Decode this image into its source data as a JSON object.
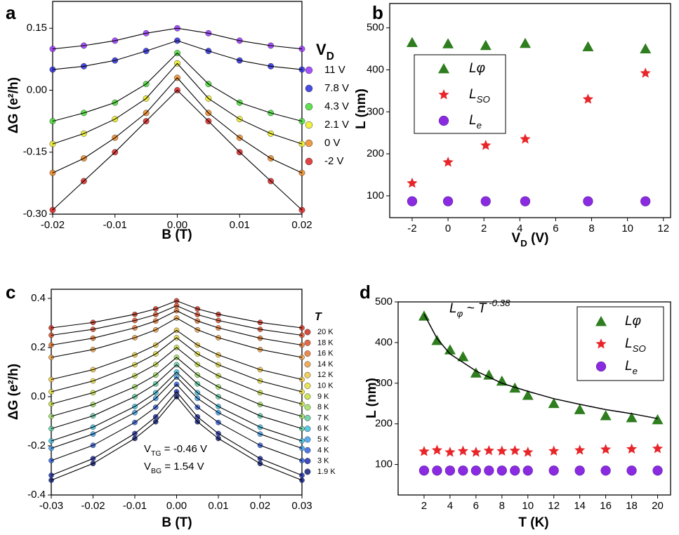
{
  "chart_data": [
    {
      "type": "line",
      "panel_label": "a",
      "x_label": "B (T)",
      "y_label": "ΔG (e²/h)",
      "legend_title": {
        "main": "V",
        "sub": "D"
      },
      "x": [
        -0.02,
        -0.015,
        -0.01,
        -0.005,
        0,
        0.005,
        0.01,
        0.015,
        0.02
      ],
      "xlim": [
        -0.02,
        0.02
      ],
      "ylim": [
        -0.3,
        0.215
      ],
      "xticks": [
        -0.02,
        -0.01,
        {
          "value": 0,
          "label": "0.00"
        },
        0.01,
        0.02
      ],
      "yticks": [
        {
          "value": 0.15,
          "label": "0.15"
        },
        {
          "value": 0,
          "label": "0.00"
        },
        {
          "value": -0.15,
          "label": "-0.15"
        },
        {
          "value": -0.3,
          "label": "-0.30"
        }
      ],
      "fit_color": "#000000",
      "series": [
        {
          "name": "11 V",
          "color": "#9933ff",
          "marker": "circle",
          "values": [
            0.1,
            0.108,
            0.12,
            0.138,
            0.15,
            0.138,
            0.12,
            0.108,
            0.1
          ]
        },
        {
          "name": "7.8 V",
          "color": "#2a2ae0",
          "marker": "circle",
          "values": [
            0.05,
            0.058,
            0.072,
            0.095,
            0.12,
            0.095,
            0.072,
            0.058,
            0.05
          ]
        },
        {
          "name": "4.3 V",
          "color": "#44dd33",
          "marker": "circle",
          "values": [
            -0.075,
            -0.055,
            -0.03,
            0.015,
            0.09,
            0.015,
            -0.03,
            -0.055,
            -0.075
          ]
        },
        {
          "name": "2.1 V",
          "color": "#eeee22",
          "marker": "circle",
          "values": [
            -0.13,
            -0.105,
            -0.07,
            -0.02,
            0.065,
            -0.02,
            -0.07,
            -0.105,
            -0.13
          ]
        },
        {
          "name": "0 V",
          "color": "#ee8822",
          "marker": "circle",
          "values": [
            -0.2,
            -0.165,
            -0.115,
            -0.055,
            0.03,
            -0.055,
            -0.115,
            -0.165,
            -0.2
          ]
        },
        {
          "name": "-2 V",
          "color": "#dd2222",
          "marker": "circle",
          "values": [
            -0.29,
            -0.22,
            -0.15,
            -0.075,
            0,
            -0.075,
            -0.15,
            -0.22,
            -0.29
          ]
        }
      ]
    },
    {
      "type": "scatter",
      "panel_label": "b",
      "x_label": {
        "main": "V",
        "sub": "D",
        "rest": " (V)"
      },
      "y_label": "L (nm)",
      "x": [
        -2,
        0,
        2.1,
        4.3,
        7.8,
        11
      ],
      "xlim": [
        -3.25,
        12.4
      ],
      "ylim": [
        48,
        558
      ],
      "xticks": [
        -2,
        0,
        2,
        4,
        6,
        8,
        10,
        12
      ],
      "yticks": [
        100,
        200,
        300,
        400,
        500
      ],
      "series": [
        {
          "name": "Lφ",
          "color": "#2e7d1e",
          "marker": "triangle",
          "values": [
            465,
            462,
            458,
            463,
            455,
            450
          ]
        },
        {
          "name": "L",
          "name_sub": "SO",
          "color": "#e8262a",
          "marker": "star",
          "values": [
            130,
            180,
            220,
            235,
            330,
            392
          ]
        },
        {
          "name": "L",
          "name_sub": "e",
          "color": "#8a2be2",
          "marker": "sphere",
          "values": [
            87,
            87,
            87,
            87,
            87,
            87
          ]
        }
      ]
    },
    {
      "type": "line",
      "panel_label": "c",
      "x_label": "B (T)",
      "y_label": "ΔG (e²/h)",
      "legend_title": {
        "main": "T"
      },
      "annotations": [
        {
          "main": "V",
          "sub": "TG",
          "rest": " = -0.46 V"
        },
        {
          "main": "V",
          "sub": "BG",
          "rest": " = 1.54 V"
        }
      ],
      "x": [
        -0.03,
        -0.02,
        -0.01,
        -0.005,
        0,
        0.005,
        0.01,
        0.02,
        0.03
      ],
      "xlim": [
        -0.03,
        0.03
      ],
      "ylim": [
        -0.4,
        0.437
      ],
      "xticks": [
        -0.03,
        -0.02,
        -0.01,
        {
          "value": 0,
          "label": "0.00"
        },
        0.01,
        0.02,
        0.03
      ],
      "yticks": [
        0.4,
        0.2,
        {
          "value": 0,
          "label": "0.0"
        },
        -0.2,
        -0.4
      ],
      "fit_color": "#000000",
      "series": [
        {
          "name": "20 K",
          "color": "#d03020",
          "marker": "circle",
          "values": [
            0.28,
            0.302,
            0.335,
            0.357,
            0.39,
            0.357,
            0.335,
            0.302,
            0.28
          ]
        },
        {
          "name": "18 K",
          "color": "#e05028",
          "marker": "circle",
          "values": [
            0.25,
            0.274,
            0.31,
            0.334,
            0.37,
            0.334,
            0.31,
            0.274,
            0.25
          ]
        },
        {
          "name": "16 K",
          "color": "#e87830",
          "marker": "circle",
          "values": [
            0.21,
            0.238,
            0.28,
            0.308,
            0.35,
            0.308,
            0.28,
            0.238,
            0.21
          ]
        },
        {
          "name": "14 K",
          "color": "#f0a040",
          "marker": "circle",
          "values": [
            0.16,
            0.192,
            0.24,
            0.272,
            0.32,
            0.272,
            0.24,
            0.192,
            0.16
          ]
        },
        {
          "name": "12 K",
          "color": "#f0c840",
          "marker": "circle",
          "values": [
            0.07,
            0.11,
            0.17,
            0.21,
            0.27,
            0.21,
            0.17,
            0.11,
            0.07
          ]
        },
        {
          "name": "10 K",
          "color": "#e8e040",
          "marker": "circle",
          "values": [
            0.02,
            0.064,
            0.13,
            0.174,
            0.24,
            0.174,
            0.13,
            0.064,
            0.02
          ]
        },
        {
          "name": "9 K",
          "color": "#c8e040",
          "marker": "circle",
          "values": [
            -0.03,
            0.016,
            0.085,
            0.131,
            0.2,
            0.131,
            0.085,
            0.016,
            -0.03
          ]
        },
        {
          "name": "8 K",
          "color": "#a0e060",
          "marker": "circle",
          "values": [
            -0.08,
            -0.032,
            0.04,
            0.088,
            0.16,
            0.088,
            0.04,
            -0.032,
            -0.08
          ]
        },
        {
          "name": "7 K",
          "color": "#60d0a0",
          "marker": "circle",
          "values": [
            -0.13,
            -0.078,
            0,
            0.052,
            0.13,
            0.052,
            0,
            -0.078,
            -0.13
          ]
        },
        {
          "name": "6 K",
          "color": "#40c0e0",
          "marker": "circle",
          "values": [
            -0.18,
            -0.124,
            -0.04,
            0.016,
            0.1,
            0.016,
            -0.04,
            -0.124,
            -0.18
          ]
        },
        {
          "name": "5 K",
          "color": "#40a0f0",
          "marker": "circle",
          "values": [
            -0.21,
            -0.152,
            -0.065,
            -0.007,
            0.08,
            -0.007,
            -0.065,
            -0.152,
            -0.21
          ]
        },
        {
          "name": "4 K",
          "color": "#3060e0",
          "marker": "circle",
          "values": [
            -0.26,
            -0.198,
            -0.105,
            -0.043,
            0.05,
            -0.043,
            -0.105,
            -0.198,
            -0.26
          ]
        },
        {
          "name": "3 K",
          "color": "#2030b0",
          "marker": "circle",
          "values": [
            -0.32,
            -0.252,
            -0.15,
            -0.082,
            0.02,
            -0.082,
            -0.15,
            -0.252,
            -0.32
          ]
        },
        {
          "name": "1.9 K",
          "color": "#102080",
          "marker": "circle",
          "values": [
            -0.34,
            -0.272,
            -0.17,
            -0.102,
            0,
            -0.102,
            -0.17,
            -0.272,
            -0.34
          ]
        }
      ]
    },
    {
      "type": "scatter",
      "panel_label": "d",
      "x_label": "T (K)",
      "y_label": "L (nm)",
      "annotations": [
        {
          "main": "L",
          "sub": "φ",
          "mid": " ~ T",
          "sup": " -0.38"
        }
      ],
      "x": [
        2,
        3,
        4,
        5,
        6,
        7,
        8,
        9,
        10,
        12,
        14,
        16,
        18,
        20
      ],
      "xlim": [
        0,
        21
      ],
      "ylim": [
        25,
        500
      ],
      "xticks": [
        2,
        4,
        6,
        8,
        10,
        12,
        14,
        16,
        18,
        20
      ],
      "yticks": [
        100,
        200,
        300,
        400,
        500
      ],
      "fit": {
        "color": "#000000",
        "x": [
          2,
          3,
          4,
          6,
          8,
          10,
          12,
          14,
          16,
          18,
          20
        ],
        "values": [
          470,
          410,
          372,
          330,
          300,
          280,
          262,
          248,
          235,
          225,
          213
        ]
      },
      "series": [
        {
          "name": "Lφ",
          "color": "#2e7d1e",
          "marker": "triangle",
          "values": [
            465,
            405,
            382,
            365,
            325,
            320,
            305,
            288,
            270,
            250,
            235,
            220,
            215,
            210
          ]
        },
        {
          "name": "L",
          "name_sub": "SO",
          "color": "#e8262a",
          "marker": "star",
          "values": [
            132,
            135,
            130,
            133,
            130,
            134,
            133,
            134,
            130,
            133,
            135,
            137,
            138,
            139
          ]
        },
        {
          "name": "L",
          "name_sub": "e",
          "color": "#8a2be2",
          "marker": "sphere",
          "values": [
            85,
            85,
            85,
            85,
            85,
            85,
            85,
            85,
            85,
            85,
            85,
            85,
            85,
            85
          ]
        }
      ]
    }
  ]
}
